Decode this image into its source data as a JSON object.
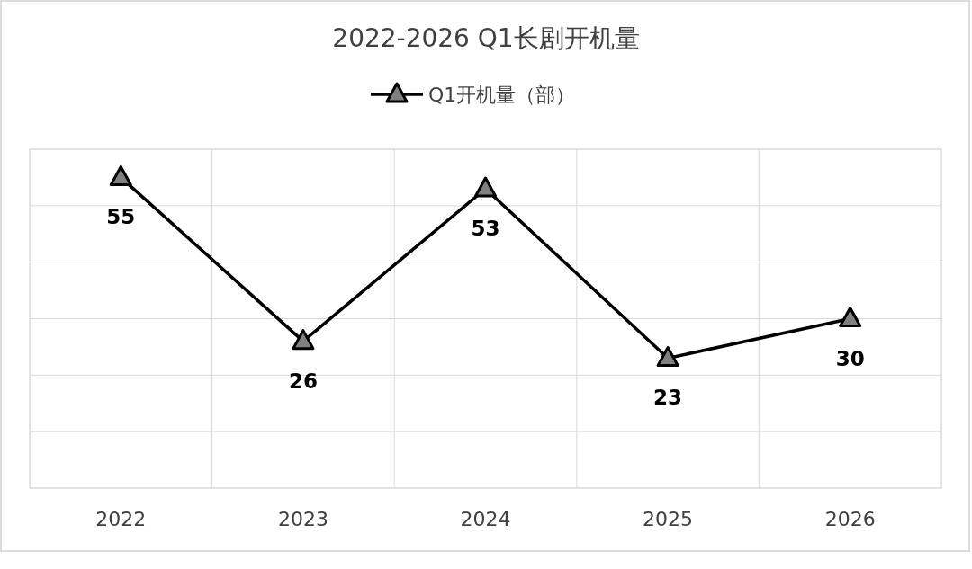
{
  "chart_data": {
    "type": "line",
    "title": "2022-2026 Q1长剧开机量",
    "categories": [
      "2022",
      "2023",
      "2024",
      "2025",
      "2026"
    ],
    "series": [
      {
        "name": "Q1开机量（部）",
        "color": "#000000",
        "values": [
          55,
          26,
          53,
          23,
          30
        ]
      }
    ],
    "ylim": [
      0,
      60
    ],
    "yticks": [
      {
        "value": 0,
        "label": null
      },
      {
        "value": 10,
        "label": null
      },
      {
        "value": 20,
        "label": null
      },
      {
        "value": 30,
        "label": null
      },
      {
        "value": 40,
        "label": null
      },
      {
        "value": 50,
        "label": null
      },
      {
        "value": 60,
        "label": null
      }
    ],
    "tick_labels": "x",
    "grid": true,
    "legend": "top",
    "marker": "triangle",
    "line_style": "solid",
    "data_labels": true
  }
}
